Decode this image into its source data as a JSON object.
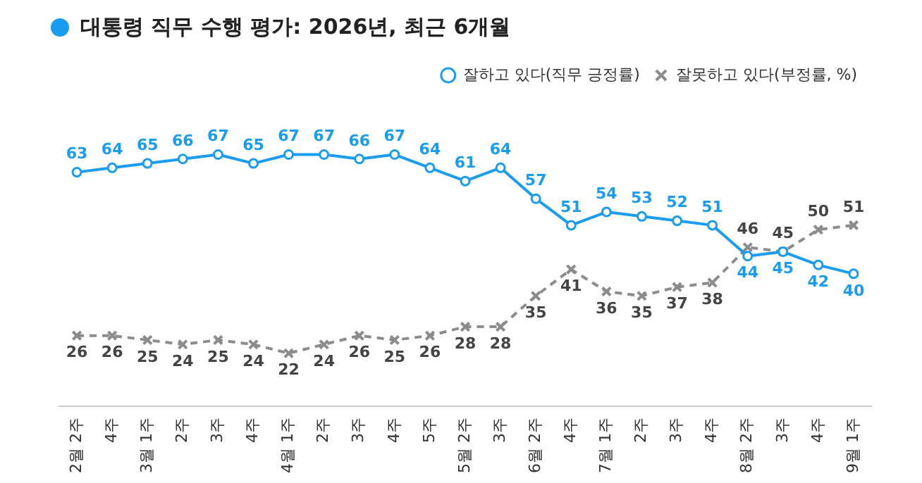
{
  "chart_data": {
    "type": "line",
    "title": "대통령 직무 수행 평가: 2026년, 최근 6개월",
    "categories": [
      "2월 2주",
      "4주",
      "3월 1주",
      "2주",
      "3주",
      "4주",
      "4월 1주",
      "2주",
      "3주",
      "4주",
      "5주",
      "5월 2주",
      "3주",
      "6월 2주",
      "4주",
      "7월 1주",
      "2주",
      "3주",
      "4주",
      "8월 2주",
      "3주",
      "4주",
      "9월 1주"
    ],
    "series": [
      {
        "name": "잘하고 있다(직무 긍정률)",
        "color": "#1a9cf0",
        "marker": "circle",
        "line_style": "solid",
        "values": [
          63,
          64,
          65,
          66,
          67,
          65,
          67,
          67,
          66,
          67,
          64,
          61,
          64,
          57,
          51,
          54,
          53,
          52,
          51,
          44,
          45,
          42,
          40
        ]
      },
      {
        "name": "잘못하고 있다(부정률, %)",
        "color": "#8c8c8c",
        "marker": "cross",
        "line_style": "dashed",
        "values": [
          26,
          26,
          25,
          24,
          25,
          24,
          22,
          24,
          26,
          25,
          26,
          28,
          28,
          35,
          41,
          36,
          35,
          37,
          38,
          46,
          45,
          50,
          51
        ]
      }
    ],
    "data_labels": true,
    "grid": false,
    "legend": "top right",
    "tick_labels": "x"
  }
}
